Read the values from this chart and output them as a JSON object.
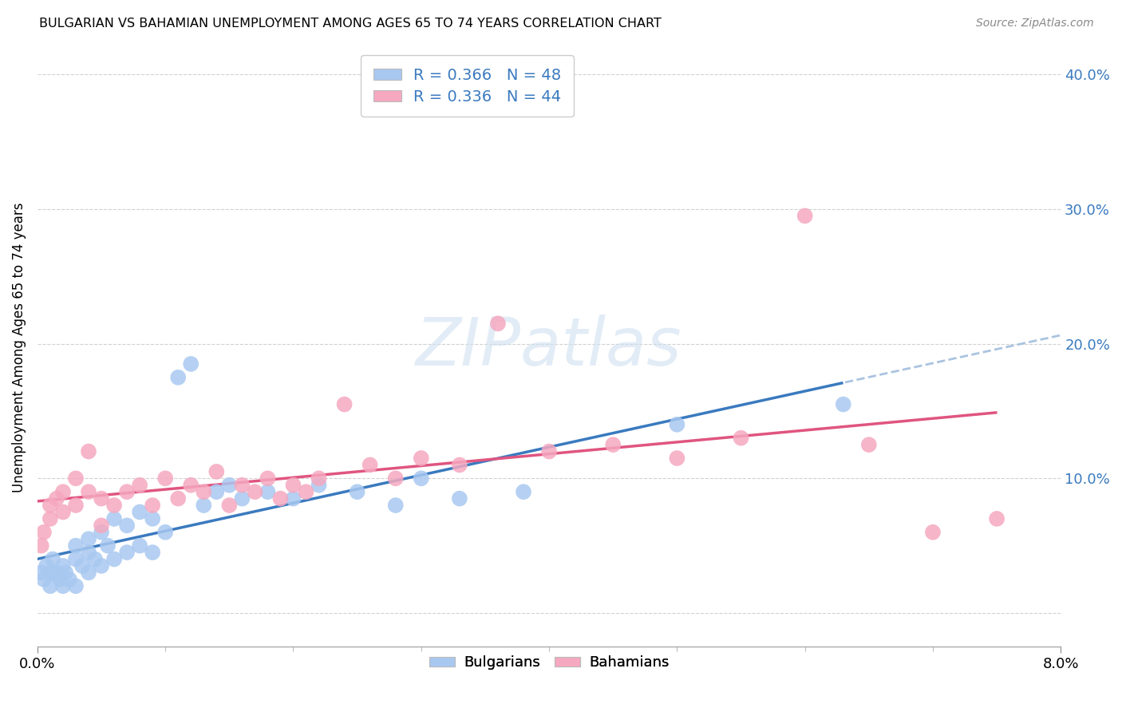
{
  "title": "BULGARIAN VS BAHAMIAN UNEMPLOYMENT AMONG AGES 65 TO 74 YEARS CORRELATION CHART",
  "source": "Source: ZipAtlas.com",
  "ylabel": "Unemployment Among Ages 65 to 74 years",
  "xlim": [
    0.0,
    0.08
  ],
  "ylim": [
    -0.025,
    0.42
  ],
  "yticks": [
    0.0,
    0.1,
    0.2,
    0.3,
    0.4
  ],
  "ytick_labels": [
    "",
    "10.0%",
    "20.0%",
    "30.0%",
    "40.0%"
  ],
  "background_color": "#ffffff",
  "bulgarian_color": "#a8c8f0",
  "bahamian_color": "#f5a8c0",
  "blue_line_color": "#3a7abf",
  "pink_line_color": "#e05580",
  "dashed_ext_color": "#aac4e0",
  "R_bulgarian": 0.366,
  "N_bulgarian": 48,
  "R_bahamian": 0.336,
  "N_bahamian": 44,
  "watermark": "ZIPatlas",
  "bg_x": [
    0.0003,
    0.0005,
    0.0007,
    0.001,
    0.001,
    0.0012,
    0.0015,
    0.0018,
    0.002,
    0.002,
    0.0022,
    0.0025,
    0.003,
    0.003,
    0.003,
    0.0035,
    0.004,
    0.004,
    0.004,
    0.0045,
    0.005,
    0.005,
    0.0055,
    0.006,
    0.006,
    0.007,
    0.007,
    0.008,
    0.008,
    0.009,
    0.009,
    0.01,
    0.011,
    0.012,
    0.013,
    0.014,
    0.015,
    0.016,
    0.018,
    0.02,
    0.022,
    0.025,
    0.028,
    0.03,
    0.033,
    0.038,
    0.05,
    0.063
  ],
  "bg_y": [
    0.03,
    0.025,
    0.035,
    0.03,
    0.02,
    0.04,
    0.03,
    0.025,
    0.035,
    0.02,
    0.03,
    0.025,
    0.05,
    0.04,
    0.02,
    0.035,
    0.055,
    0.045,
    0.03,
    0.04,
    0.06,
    0.035,
    0.05,
    0.07,
    0.04,
    0.065,
    0.045,
    0.075,
    0.05,
    0.07,
    0.045,
    0.06,
    0.175,
    0.185,
    0.08,
    0.09,
    0.095,
    0.085,
    0.09,
    0.085,
    0.095,
    0.09,
    0.08,
    0.1,
    0.085,
    0.09,
    0.14,
    0.155
  ],
  "bh_x": [
    0.0003,
    0.0005,
    0.001,
    0.001,
    0.0015,
    0.002,
    0.002,
    0.003,
    0.003,
    0.004,
    0.004,
    0.005,
    0.005,
    0.006,
    0.007,
    0.008,
    0.009,
    0.01,
    0.011,
    0.012,
    0.013,
    0.014,
    0.015,
    0.016,
    0.017,
    0.018,
    0.019,
    0.02,
    0.021,
    0.022,
    0.024,
    0.026,
    0.028,
    0.03,
    0.033,
    0.036,
    0.04,
    0.045,
    0.05,
    0.055,
    0.06,
    0.065,
    0.07,
    0.075
  ],
  "bh_y": [
    0.05,
    0.06,
    0.07,
    0.08,
    0.085,
    0.075,
    0.09,
    0.08,
    0.1,
    0.09,
    0.12,
    0.065,
    0.085,
    0.08,
    0.09,
    0.095,
    0.08,
    0.1,
    0.085,
    0.095,
    0.09,
    0.105,
    0.08,
    0.095,
    0.09,
    0.1,
    0.085,
    0.095,
    0.09,
    0.1,
    0.155,
    0.11,
    0.1,
    0.115,
    0.11,
    0.215,
    0.12,
    0.125,
    0.115,
    0.13,
    0.295,
    0.125,
    0.06,
    0.07
  ]
}
